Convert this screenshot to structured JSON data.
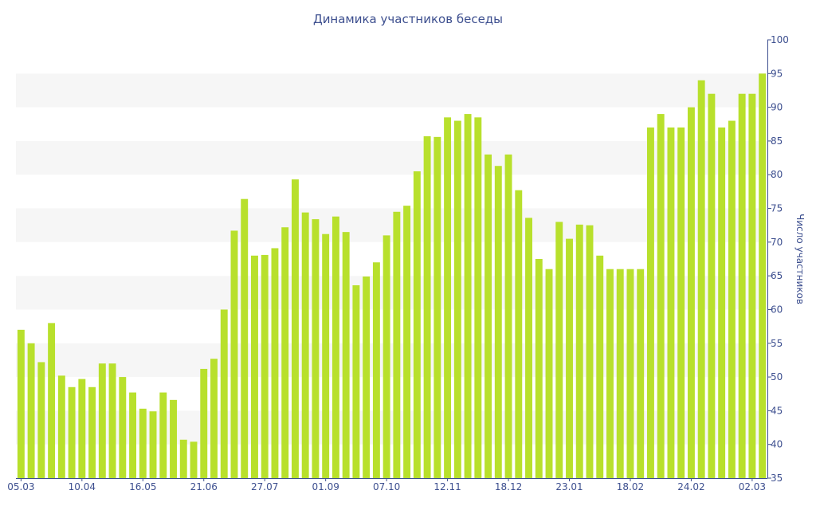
{
  "chart_data": {
    "type": "bar",
    "title": "Динамика участников беседы",
    "ylabel": "Число участников",
    "xlabel": "",
    "ylim": [
      35,
      100
    ],
    "y_ticks": [
      35,
      40,
      45,
      50,
      55,
      60,
      65,
      70,
      75,
      80,
      85,
      90,
      95,
      100
    ],
    "y_axis_position": "right",
    "grid": "horizontal alternating bands",
    "colors": {
      "bar": "#b8e02c",
      "axis": "#3d4f8f",
      "band": "#f6f6f6"
    },
    "x_tick_labels": [
      {
        "index": 0,
        "label": "05.03"
      },
      {
        "index": 6,
        "label": "10.04"
      },
      {
        "index": 12,
        "label": "16.05"
      },
      {
        "index": 18,
        "label": "21.06"
      },
      {
        "index": 24,
        "label": "27.07"
      },
      {
        "index": 30,
        "label": "01.09"
      },
      {
        "index": 36,
        "label": "07.10"
      },
      {
        "index": 42,
        "label": "12.11"
      },
      {
        "index": 48,
        "label": "18.12"
      },
      {
        "index": 54,
        "label": "23.01"
      },
      {
        "index": 60,
        "label": "18.02"
      },
      {
        "index": 66,
        "label": "24.02"
      },
      {
        "index": 72,
        "label": "02.03"
      }
    ],
    "values": [
      57,
      55,
      52.2,
      58,
      50.2,
      48.5,
      49.7,
      48.5,
      52,
      52,
      50,
      47.7,
      45.3,
      44.9,
      47.7,
      46.6,
      40.7,
      40.4,
      51.2,
      52.7,
      60,
      71.7,
      76.4,
      68,
      68.1,
      69.1,
      72.2,
      79.3,
      74.4,
      73.4,
      71.2,
      73.8,
      71.5,
      63.6,
      64.9,
      67,
      71,
      74.5,
      75.4,
      80.5,
      85.7,
      85.6,
      88.5,
      88,
      89,
      88.5,
      83,
      81.3,
      83,
      77.7,
      73.6,
      67.5,
      66,
      73,
      70.5,
      72.6,
      72.5,
      68,
      66,
      66,
      66,
      66,
      87,
      89,
      87,
      87,
      90,
      94,
      92,
      87,
      88,
      92,
      92,
      95
    ]
  }
}
